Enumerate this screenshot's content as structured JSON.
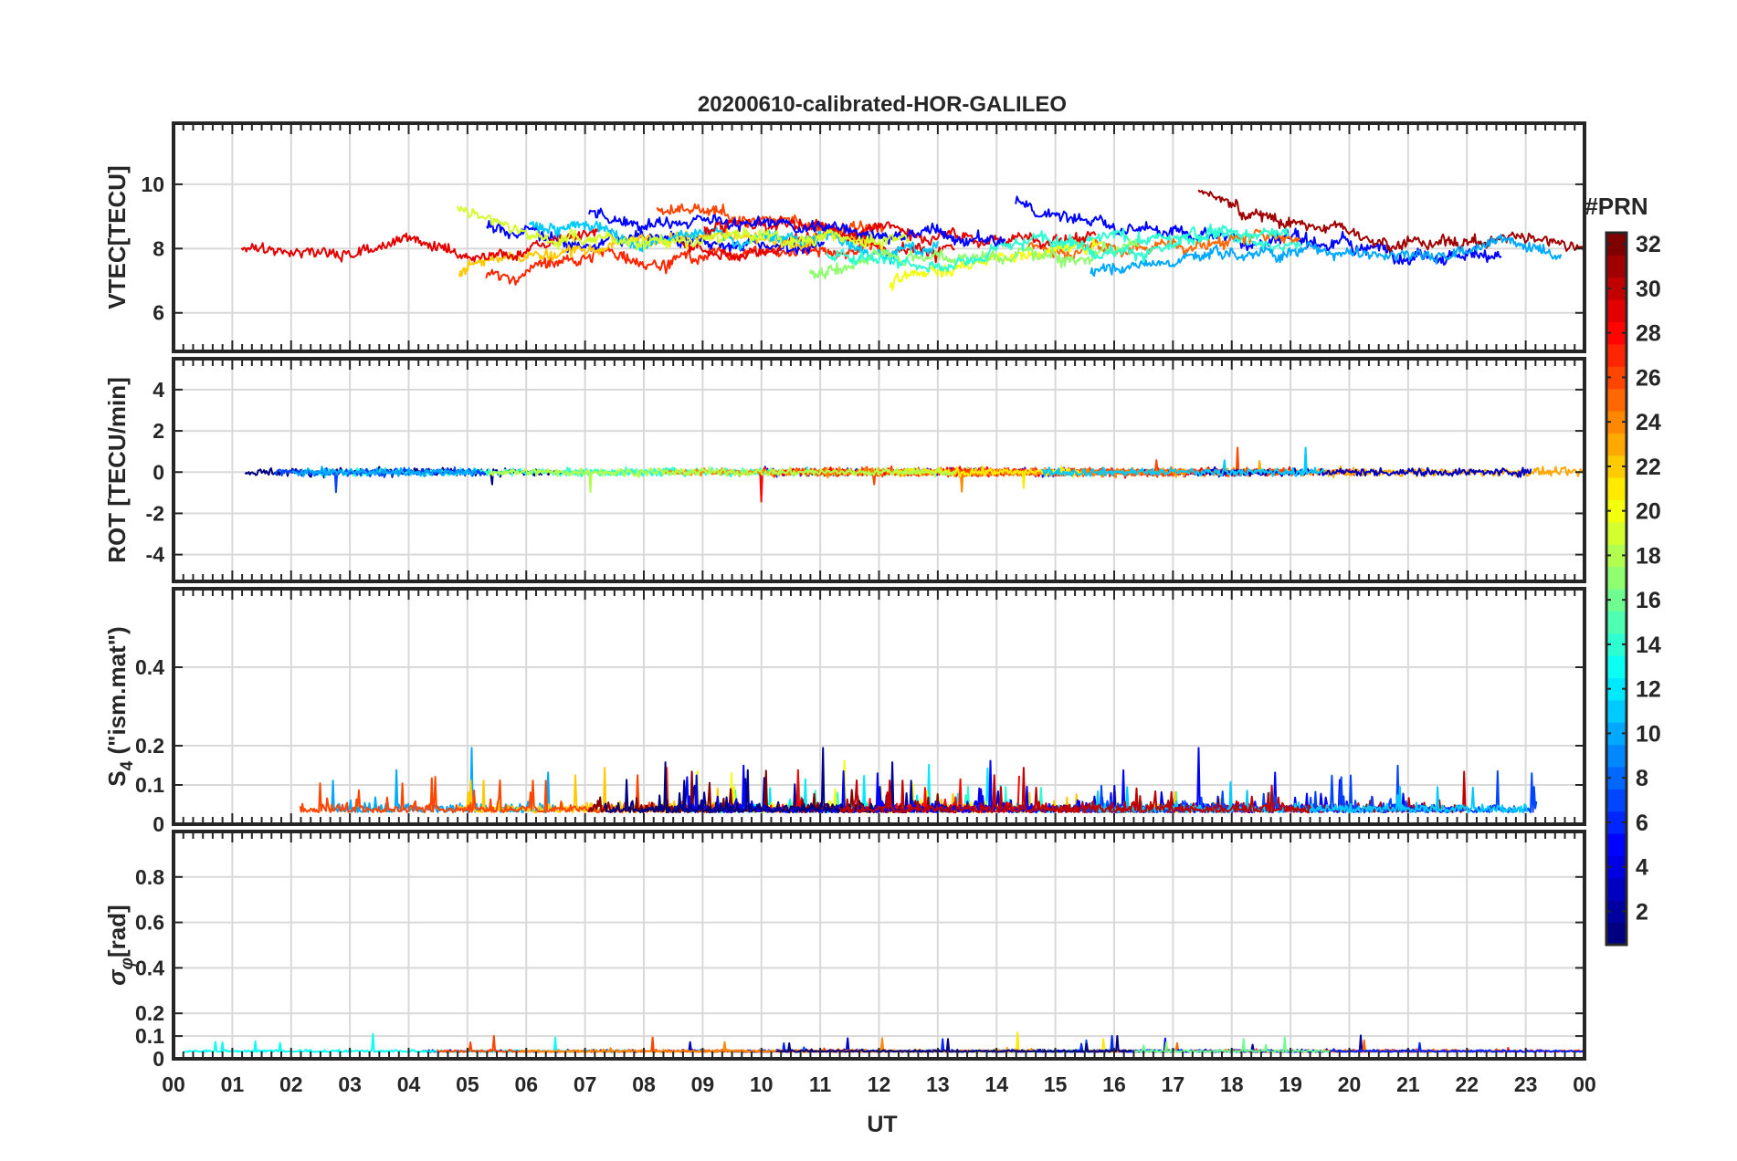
{
  "figure_title": "20200610-calibrated-HOR-GALILEO",
  "colorbar": {
    "label": "#PRN",
    "range": [
      1,
      32
    ],
    "ticks": [
      "2",
      "4",
      "6",
      "8",
      "10",
      "12",
      "14",
      "16",
      "18",
      "20",
      "22",
      "24",
      "26",
      "28",
      "30",
      "32"
    ],
    "colormap": "jet"
  },
  "chart_data": [
    {
      "type": "line",
      "panel": "vtec",
      "ylabel": "VTEC[TECU]",
      "ylim": [
        4.8,
        11.9
      ],
      "yticks": [
        "6",
        "8",
        "10"
      ],
      "xlim": [
        0,
        24
      ],
      "grid": true
    },
    {
      "type": "line",
      "panel": "rot",
      "ylabel": "ROT [TECU/min]",
      "ylim": [
        -5.3,
        5.5
      ],
      "yticks": [
        "-4",
        "-2",
        "0",
        "2",
        "4"
      ],
      "xlim": [
        0,
        24
      ],
      "grid": true
    },
    {
      "type": "line",
      "panel": "s4",
      "ylabel_main": "S",
      "ylabel_sub": "4",
      "ylabel_rest": " (\"ism.mat\")",
      "ylim": [
        0,
        0.6
      ],
      "yticks": [
        "0",
        "0.1",
        "0.2",
        "0.4"
      ],
      "xlim": [
        0,
        24
      ],
      "grid": true
    },
    {
      "type": "line",
      "panel": "sigma",
      "ylabel_main": "σ",
      "ylabel_sub": "φ",
      "ylabel_rest": "[rad]",
      "ylim": [
        0,
        1.0
      ],
      "yticks": [
        "0",
        "0.1",
        "0.2",
        "0.4",
        "0.6",
        "0.8"
      ],
      "xlim": [
        0,
        24
      ],
      "grid": true,
      "xlabel": "UT",
      "xticks": [
        "00",
        "01",
        "02",
        "03",
        "04",
        "05",
        "06",
        "07",
        "08",
        "09",
        "10",
        "11",
        "12",
        "13",
        "14",
        "15",
        "16",
        "17",
        "18",
        "19",
        "20",
        "21",
        "22",
        "23",
        "00"
      ]
    }
  ]
}
